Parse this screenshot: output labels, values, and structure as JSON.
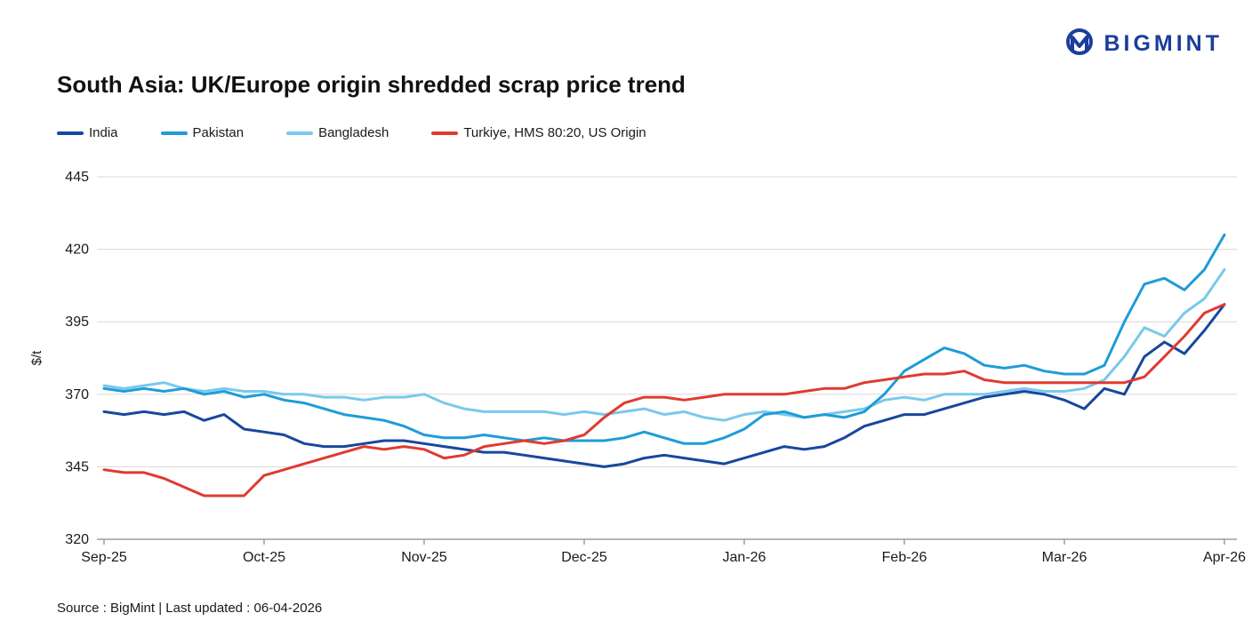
{
  "logo": {
    "brand": "BIGMINT"
  },
  "footer": {
    "text": "Source : BigMint | Last updated : 06-04-2026"
  },
  "chart_data": {
    "type": "line",
    "title": "South Asia: UK/Europe origin shredded scrap price trend",
    "ylabel": "$/t",
    "ylim": [
      320,
      445
    ],
    "yticks": [
      320,
      345,
      370,
      395,
      420,
      445
    ],
    "grid": "horizontal",
    "legend_position": "top-left",
    "x_unit": "months since Sep-25",
    "x_step": 0.125,
    "xtick_labels": [
      "Sep-25",
      "Oct-25",
      "Nov-25",
      "Dec-25",
      "Jan-26",
      "Feb-26",
      "Mar-26",
      "Apr-26"
    ],
    "xtick_positions": [
      0,
      1,
      2,
      3,
      4,
      5,
      6,
      7
    ],
    "series": [
      {
        "name": "India",
        "color": "#17479e",
        "values": [
          364,
          363,
          364,
          363,
          364,
          361,
          363,
          358,
          357,
          356,
          353,
          352,
          352,
          353,
          354,
          354,
          353,
          352,
          351,
          350,
          350,
          349,
          348,
          347,
          346,
          345,
          346,
          348,
          349,
          348,
          347,
          346,
          348,
          350,
          352,
          351,
          352,
          355,
          359,
          361,
          363,
          363,
          365,
          367,
          369,
          370,
          371,
          370,
          368,
          365,
          372,
          370,
          383,
          388,
          384,
          392,
          401
        ]
      },
      {
        "name": "Pakistan",
        "color": "#1e9cd8",
        "values": [
          372,
          371,
          372,
          371,
          372,
          370,
          371,
          369,
          370,
          368,
          367,
          365,
          363,
          362,
          361,
          359,
          356,
          355,
          355,
          356,
          355,
          354,
          355,
          354,
          354,
          354,
          355,
          357,
          355,
          353,
          353,
          355,
          358,
          363,
          364,
          362,
          363,
          362,
          364,
          370,
          378,
          382,
          386,
          384,
          380,
          379,
          380,
          378,
          377,
          377,
          380,
          395,
          408,
          410,
          406,
          413,
          425
        ]
      },
      {
        "name": "Bangladesh",
        "color": "#79c9ec",
        "values": [
          373,
          372,
          373,
          374,
          372,
          371,
          372,
          371,
          371,
          370,
          370,
          369,
          369,
          368,
          369,
          369,
          370,
          367,
          365,
          364,
          364,
          364,
          364,
          363,
          364,
          363,
          364,
          365,
          363,
          364,
          362,
          361,
          363,
          364,
          363,
          362,
          363,
          364,
          365,
          368,
          369,
          368,
          370,
          370,
          370,
          371,
          372,
          371,
          371,
          372,
          375,
          383,
          393,
          390,
          398,
          403,
          413
        ]
      },
      {
        "name": "Turkiye, HMS 80:20, US Origin",
        "color": "#e03a30",
        "values": [
          344,
          343,
          343,
          341,
          338,
          335,
          335,
          335,
          342,
          344,
          346,
          348,
          350,
          352,
          351,
          352,
          351,
          348,
          349,
          352,
          353,
          354,
          353,
          354,
          356,
          362,
          367,
          369,
          369,
          368,
          369,
          370,
          370,
          370,
          370,
          371,
          372,
          372,
          374,
          375,
          376,
          377,
          377,
          378,
          375,
          374,
          374,
          374,
          374,
          374,
          374,
          374,
          376,
          383,
          390,
          398,
          401
        ]
      }
    ]
  }
}
